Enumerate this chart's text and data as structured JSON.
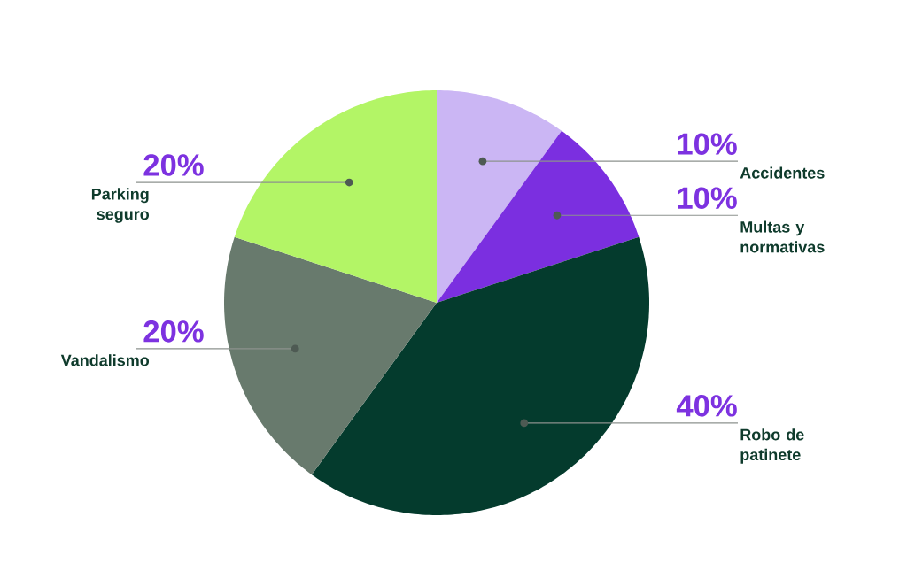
{
  "chart_data": {
    "type": "pie",
    "categories": [
      "Accidentes",
      "Multas y normativas",
      "Robo de patinete",
      "Vandalismo",
      "Parking seguro"
    ],
    "values": [
      10,
      10,
      40,
      20,
      20
    ],
    "colors": [
      "#cbb6f4",
      "#7b2fe0",
      "#043b2d",
      "#687a6d",
      "#b3f566"
    ],
    "value_labels": [
      "10%",
      "10%",
      "40%",
      "20%",
      "20%"
    ]
  }
}
